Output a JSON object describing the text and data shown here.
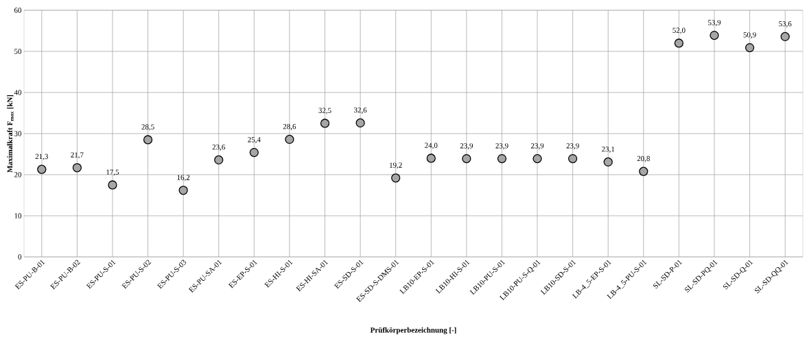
{
  "chart_data": {
    "type": "scatter",
    "xlabel": "Prüfkörperbezeichnung [-]",
    "ylabel": "**Maximalkraft  F$_{max}$  [kN]**",
    "categories": [
      "ES-PU-B-01",
      "ES-PU-B-02",
      "ES-PU-S-01",
      "ES-PU-S-02",
      "ES-PU-S-03",
      "ES-PU-SA-01",
      "ES-EP-S-01",
      "ES-HI-S-01",
      "ES-HI-SA-01",
      "ES-SD-S-01",
      "ES-SD-S-DMS-01",
      "LB10-EP-S-01",
      "LB10-HI-S-01",
      "LB10-PU-S-01",
      "LB10-PU-S-Q-01",
      "LB10-SD-S-01",
      "LB-4_5-EP-S-01",
      "LB-4_5-PU-S-01",
      "SL-SD-P-01",
      "SL-SD-PQ-01",
      "SL-SD-Q-01",
      "SL-SD-QQ-01"
    ],
    "values": [
      21.3,
      21.7,
      17.5,
      28.5,
      16.2,
      23.6,
      25.4,
      28.6,
      32.5,
      32.6,
      19.2,
      24.0,
      23.9,
      23.9,
      23.9,
      23.9,
      23.1,
      20.8,
      52.0,
      53.9,
      50.9,
      53.6
    ],
    "value_labels": [
      "21,3",
      "21,7",
      "17,5",
      "28,5",
      "16,2",
      "23,6",
      "25,4",
      "28,6",
      "32,5",
      "32,6",
      "19,2",
      "24,0",
      "23,9",
      "23,9",
      "23,9",
      "23,9",
      "23,1",
      "20,8",
      "52,0",
      "53,9",
      "50,9",
      "53,6"
    ],
    "color": "#a6a6a6",
    "ylim": [
      0,
      60
    ],
    "yticks": [
      0,
      10,
      20,
      30,
      40,
      50,
      60
    ],
    "grid": true,
    "marker": "circle"
  }
}
